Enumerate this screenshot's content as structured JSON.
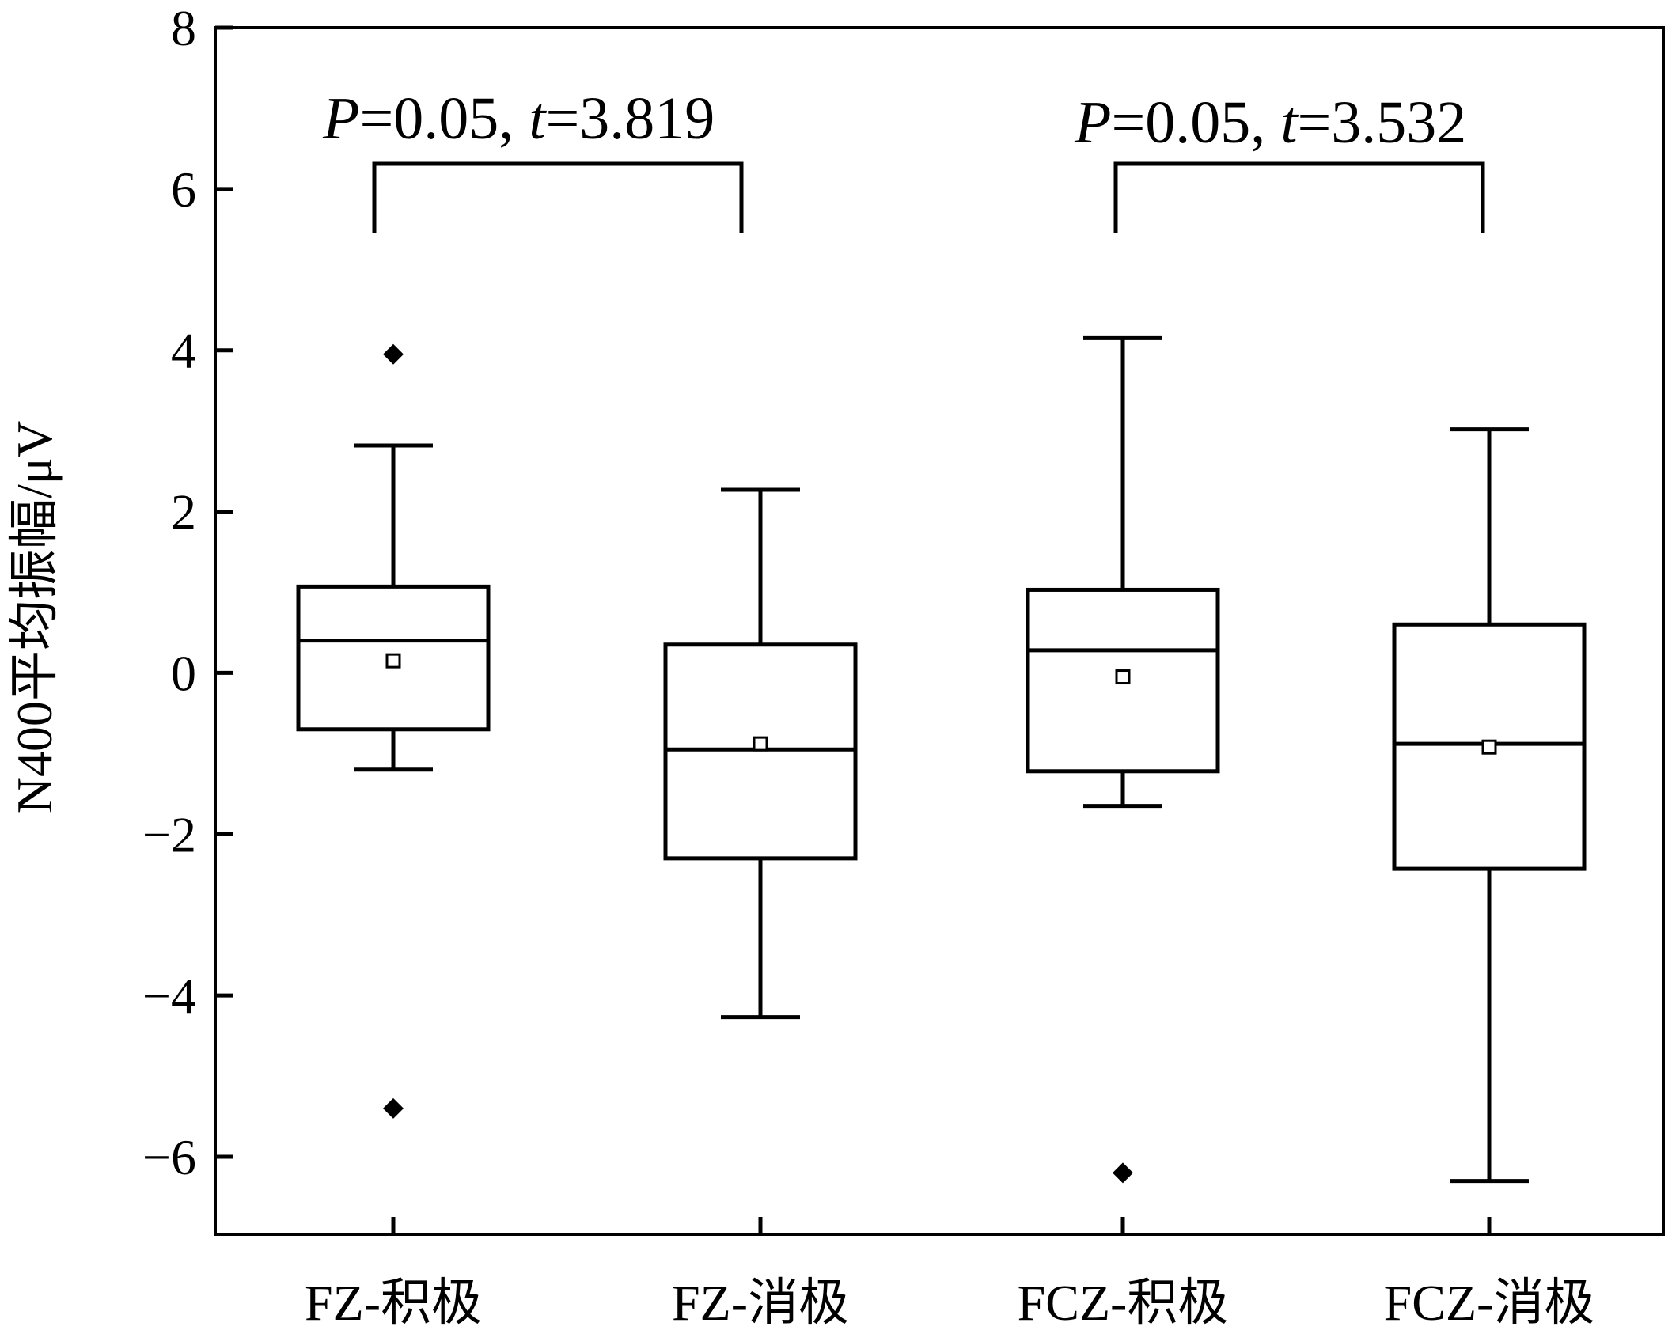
{
  "chart_data": {
    "type": "box",
    "ylabel": "N400平均振幅/μV",
    "xlabel": "",
    "ylim": [
      -7,
      8
    ],
    "yticks": [
      -6,
      -4,
      -2,
      0,
      2,
      4,
      6,
      8
    ],
    "grid": false,
    "categories": [
      "FZ-积极",
      "FZ-消极",
      "FCZ-积极",
      "FCZ-消极"
    ],
    "boxes": [
      {
        "category": "FZ-积极",
        "whisker_low": -1.2,
        "q1": -0.7,
        "median": 0.4,
        "q3": 1.07,
        "whisker_high": 2.82,
        "mean": 0.15,
        "outliers": [
          3.95,
          -5.4
        ]
      },
      {
        "category": "FZ-消极",
        "whisker_low": -4.27,
        "q1": -2.3,
        "median": -0.95,
        "q3": 0.35,
        "whisker_high": 2.27,
        "mean": -0.88,
        "outliers": []
      },
      {
        "category": "FCZ-积极",
        "whisker_low": -1.65,
        "q1": -1.22,
        "median": 0.28,
        "q3": 1.03,
        "whisker_high": 4.15,
        "mean": -0.05,
        "outliers": [
          -6.2
        ]
      },
      {
        "category": "FCZ-消极",
        "whisker_low": -6.3,
        "q1": -2.43,
        "median": -0.88,
        "q3": 0.6,
        "whisker_high": 3.02,
        "mean": -0.92,
        "outliers": []
      }
    ],
    "annotations": [
      {
        "from": "FZ-积极",
        "to": "FZ-消极",
        "p_symbol": "P",
        "p_text": "=0.05, ",
        "t_symbol": "t",
        "t_text": "=3.819"
      },
      {
        "from": "FCZ-积极",
        "to": "FCZ-消极",
        "p_symbol": "P",
        "p_text": "=0.05, ",
        "t_symbol": "t",
        "t_text": "=3.532"
      }
    ]
  }
}
